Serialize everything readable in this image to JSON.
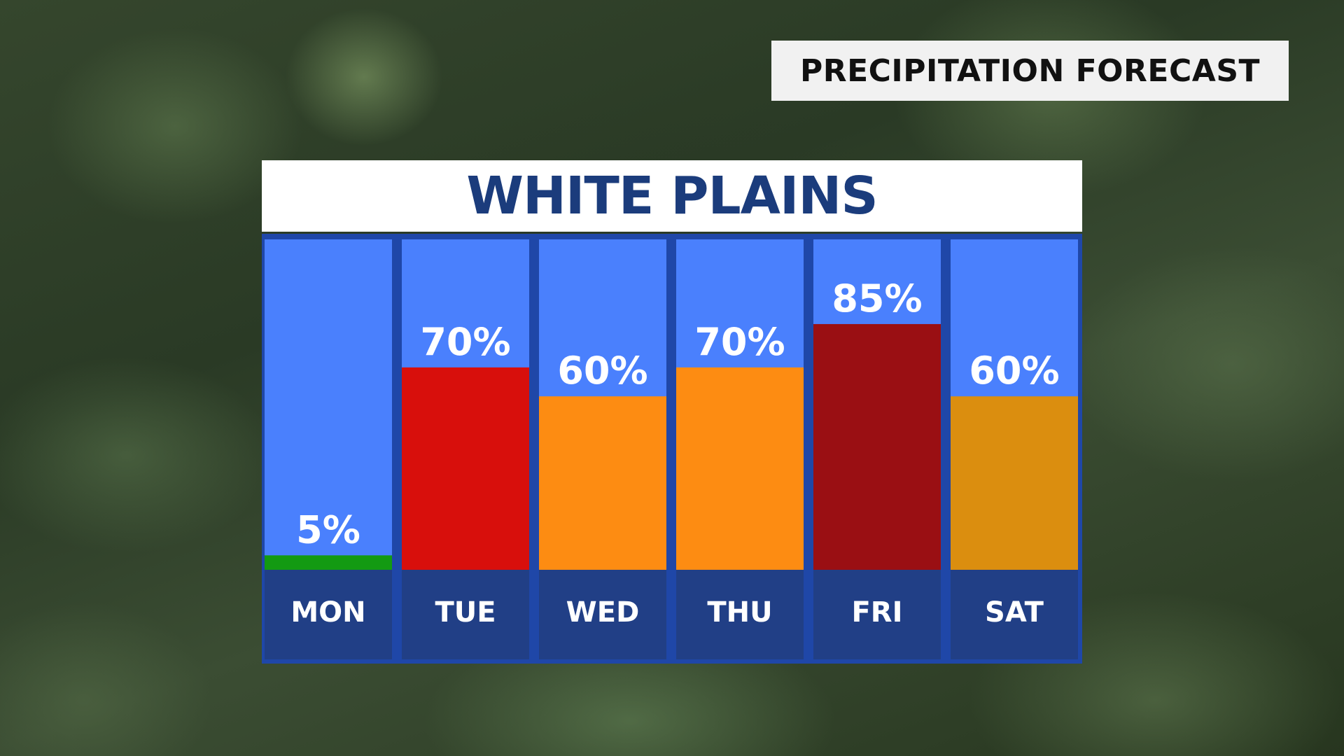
{
  "header_tag": "PRECIPITATION FORECAST",
  "chart_data": {
    "type": "bar",
    "title": "WHITE PLAINS",
    "categories": [
      "MON",
      "TUE",
      "WED",
      "THU",
      "FRI",
      "SAT"
    ],
    "values": [
      5,
      70,
      60,
      70,
      85,
      60
    ],
    "value_labels": [
      "5%",
      "70%",
      "60%",
      "70%",
      "85%",
      "60%"
    ],
    "unit": "%",
    "bar_colors": [
      "#139a12",
      "#d80f0c",
      "#fd8c12",
      "#fd8c12",
      "#9a0f13",
      "#db8e0f"
    ],
    "column_background": "#4a80fd",
    "label_background": "#213f86",
    "ylim": [
      0,
      100
    ],
    "grid": false
  }
}
